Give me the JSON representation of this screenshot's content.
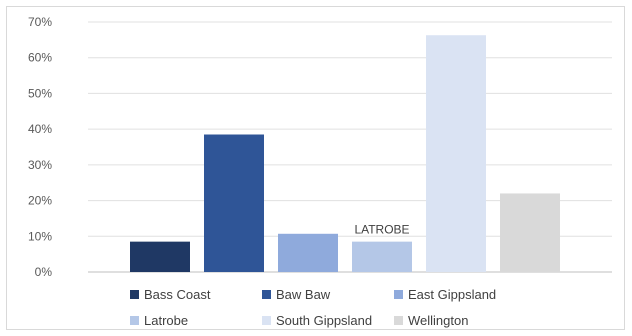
{
  "chart_data": {
    "type": "bar",
    "title": "",
    "xlabel": "",
    "ylabel": "",
    "categories": [
      "Bass Coast",
      "Baw Baw",
      "East Gippsland",
      "Latrobe",
      "South Gippsland",
      "Wellington"
    ],
    "values": [
      8.5,
      38.5,
      10.7,
      8.5,
      66.3,
      22.0
    ],
    "colors": [
      "#1f3864",
      "#2f5597",
      "#8faadc",
      "#b4c7e7",
      "#dae3f3",
      "#d9d9d9"
    ],
    "ylim": [
      0,
      70
    ],
    "yticks": [
      0,
      10,
      20,
      30,
      40,
      50,
      60,
      70
    ],
    "ytick_labels": [
      "0%",
      "10%",
      "20%",
      "30%",
      "40%",
      "50%",
      "60%",
      "70%"
    ],
    "grid": true,
    "legend_position": "bottom",
    "annotations": [
      {
        "text": "LATROBE",
        "category_index": 3
      }
    ]
  }
}
